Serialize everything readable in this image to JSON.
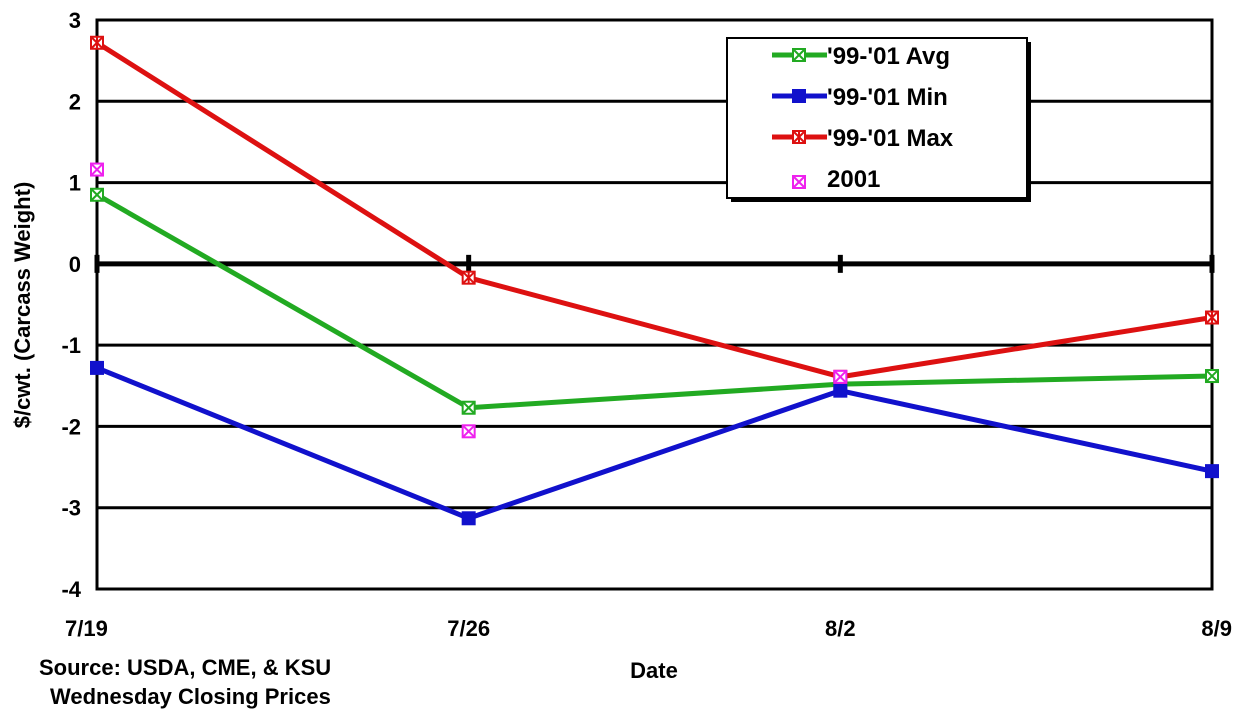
{
  "chart_data": {
    "type": "line",
    "categories": [
      "7/19",
      "7/26",
      "8/2",
      "8/9"
    ],
    "xlabel": "Date",
    "ylabel": "$/cwt. (Carcass Weight)",
    "ylim": [
      -4,
      3
    ],
    "yticks": [
      3,
      2,
      1,
      0,
      -1,
      -2,
      -3,
      -4
    ],
    "grid": true,
    "legend_position": "top-right",
    "series": [
      {
        "name": "'99-'01 Avg",
        "color": "#22aa22",
        "marker": "box-x",
        "line": true,
        "values": [
          0.85,
          -1.77,
          -1.48,
          -1.38
        ]
      },
      {
        "name": "'99-'01 Min",
        "color": "#1111cc",
        "marker": "square",
        "line": true,
        "values": [
          -1.28,
          -3.13,
          -1.56,
          -2.55
        ]
      },
      {
        "name": "'99-'01 Max",
        "color": "#dd1111",
        "marker": "box-star",
        "line": true,
        "values": [
          2.72,
          -0.17,
          -1.39,
          -0.66
        ]
      },
      {
        "name": "2001",
        "color": "#ee22ee",
        "marker": "box-x",
        "line": false,
        "values": [
          1.16,
          -2.06,
          -1.39,
          null
        ]
      }
    ]
  },
  "footer": {
    "source_line1": "Source:  USDA, CME, & KSU",
    "source_line2": "Wednesday Closing Prices"
  }
}
